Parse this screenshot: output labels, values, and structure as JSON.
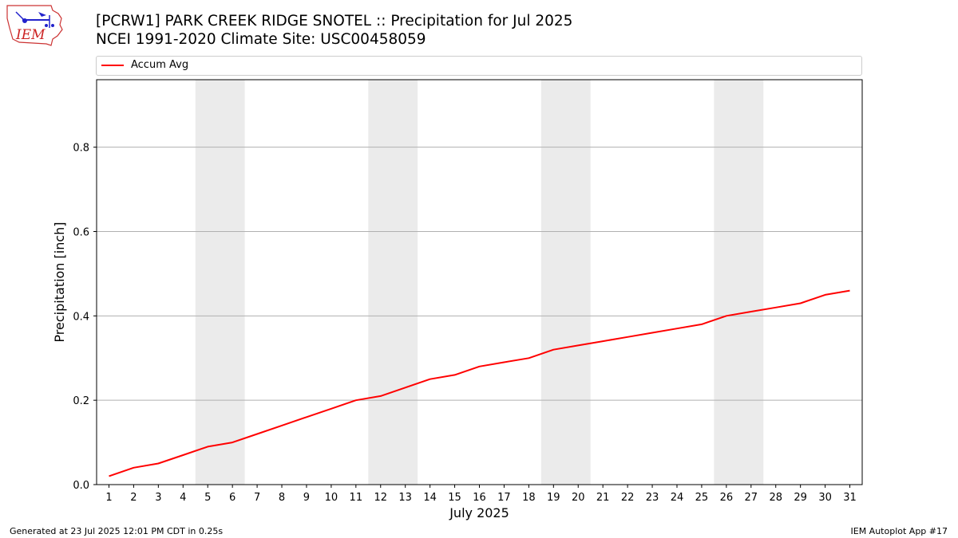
{
  "header": {
    "title_line1": "[PCRW1] PARK CREEK RIDGE SNOTEL :: Precipitation for Jul 2025",
    "title_line2": "NCEI 1991-2020 Climate Site: USC00458059"
  },
  "logo": {
    "text": "IEM",
    "icon": "iem-logo"
  },
  "footer": {
    "left": "Generated at 23 Jul 2025 12:01 PM CDT in 0.25s",
    "right": "IEM Autoplot App #17"
  },
  "chart_data": {
    "type": "line",
    "title": "[PCRW1] PARK CREEK RIDGE SNOTEL :: Precipitation for Jul 2025",
    "subtitle": "NCEI 1991-2020 Climate Site: USC00458059",
    "xlabel": "July 2025",
    "ylabel": "Precipitation [inch]",
    "x": [
      1,
      2,
      3,
      4,
      5,
      6,
      7,
      8,
      9,
      10,
      11,
      12,
      13,
      14,
      15,
      16,
      17,
      18,
      19,
      20,
      21,
      22,
      23,
      24,
      25,
      26,
      27,
      28,
      29,
      30,
      31
    ],
    "xlim": [
      0.5,
      31.5
    ],
    "ylim": [
      0,
      0.96
    ],
    "yticks": [
      0.0,
      0.2,
      0.4,
      0.6,
      0.8
    ],
    "ytick_labels": [
      "0.0",
      "0.2",
      "0.4",
      "0.6",
      "0.8"
    ],
    "grid": "horizontal",
    "legend_position": "top",
    "weekend_shading": [
      [
        5,
        6
      ],
      [
        12,
        13
      ],
      [
        19,
        20
      ],
      [
        26,
        27
      ]
    ],
    "shading_color": "#ebebeb",
    "series": [
      {
        "name": "Accum Avg",
        "color": "#ff0000",
        "values": [
          0.02,
          0.04,
          0.05,
          0.07,
          0.09,
          0.1,
          0.12,
          0.14,
          0.16,
          0.18,
          0.2,
          0.21,
          0.23,
          0.25,
          0.26,
          0.28,
          0.29,
          0.3,
          0.32,
          0.33,
          0.34,
          0.35,
          0.36,
          0.37,
          0.38,
          0.4,
          0.41,
          0.42,
          0.43,
          0.45,
          0.46
        ]
      }
    ]
  }
}
